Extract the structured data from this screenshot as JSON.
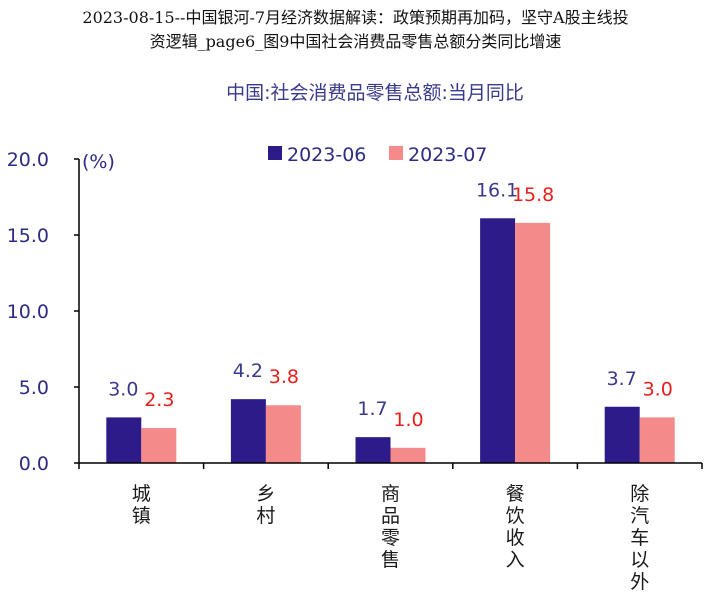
{
  "doc_title": {
    "line1": "2023-08-15--中国银河-7月经济数据解读：政策预期再加码，坚守A股主线投",
    "line2": "资逻辑_page6_图9中国社会消费品零售总额分类同比增速"
  },
  "colors": {
    "series1": "#2d1b8a",
    "series2": "#f58a8a",
    "label1": "#3a3a8c",
    "label2": "#e8201c",
    "axis": "#000000"
  },
  "chart_data": {
    "type": "bar",
    "title": "中国:社会消费品零售总额:当月同比",
    "unit_label": "(%)",
    "categories": [
      "城镇",
      "乡村",
      "商品零售",
      "餐饮收入",
      "除汽车以外"
    ],
    "series": [
      {
        "name": "2023-06",
        "values": [
          3.0,
          4.2,
          1.7,
          16.1,
          3.7
        ],
        "value_labels": [
          "3.0",
          "4.2",
          "1.7",
          "16.1",
          "3.7"
        ]
      },
      {
        "name": "2023-07",
        "values": [
          2.3,
          3.8,
          1.0,
          15.8,
          3.0
        ],
        "value_labels": [
          "2.3",
          "3.8",
          "1.0",
          "15.8",
          "3.0"
        ]
      }
    ],
    "ylim": [
      0,
      20
    ],
    "yticks": [
      "0.0",
      "5.0",
      "10.0",
      "15.0",
      "20.0"
    ],
    "legend_position": "top"
  }
}
